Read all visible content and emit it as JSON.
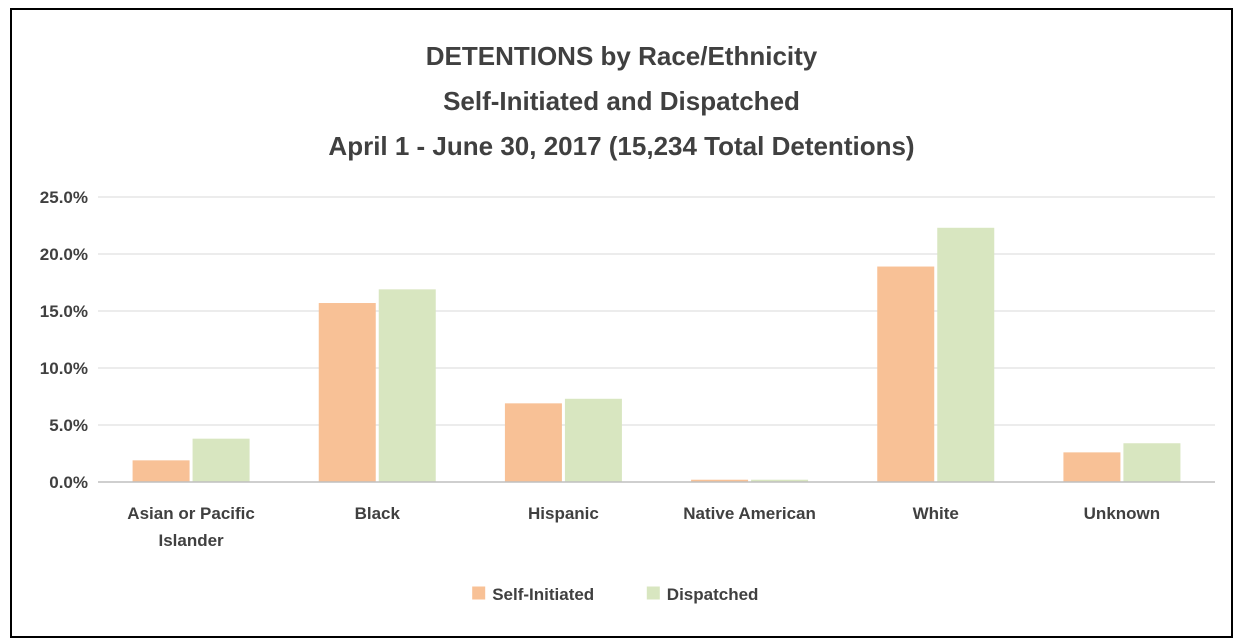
{
  "chart_data": {
    "type": "bar",
    "title_lines": [
      "DETENTIONS by Race/Ethnicity",
      "Self-Initiated and Dispatched",
      "April 1 - June 30, 2017 (15,234 Total Detentions)"
    ],
    "categories": [
      [
        "Asian or Pacific",
        "Islander"
      ],
      [
        "Black"
      ],
      [
        "Hispanic"
      ],
      [
        "Native American"
      ],
      [
        "White"
      ],
      [
        "Unknown"
      ]
    ],
    "series": [
      {
        "name": "Self-Initiated",
        "color": "#F8C196",
        "values": [
          1.9,
          15.7,
          6.9,
          0.2,
          18.9,
          2.6
        ]
      },
      {
        "name": "Dispatched",
        "color": "#D8E6C0",
        "values": [
          3.8,
          16.9,
          7.3,
          0.2,
          22.3,
          3.4
        ]
      }
    ],
    "ylim": [
      0,
      25
    ],
    "yticks": [
      0,
      5,
      10,
      15,
      20,
      25
    ],
    "ytick_labels": [
      "0.0%",
      "5.0%",
      "10.0%",
      "15.0%",
      "20.0%",
      "25.0%"
    ],
    "grid": true,
    "legend_position": "bottom",
    "grid_color": "#D9D9D9",
    "axis_color": "#BFBFBF"
  }
}
